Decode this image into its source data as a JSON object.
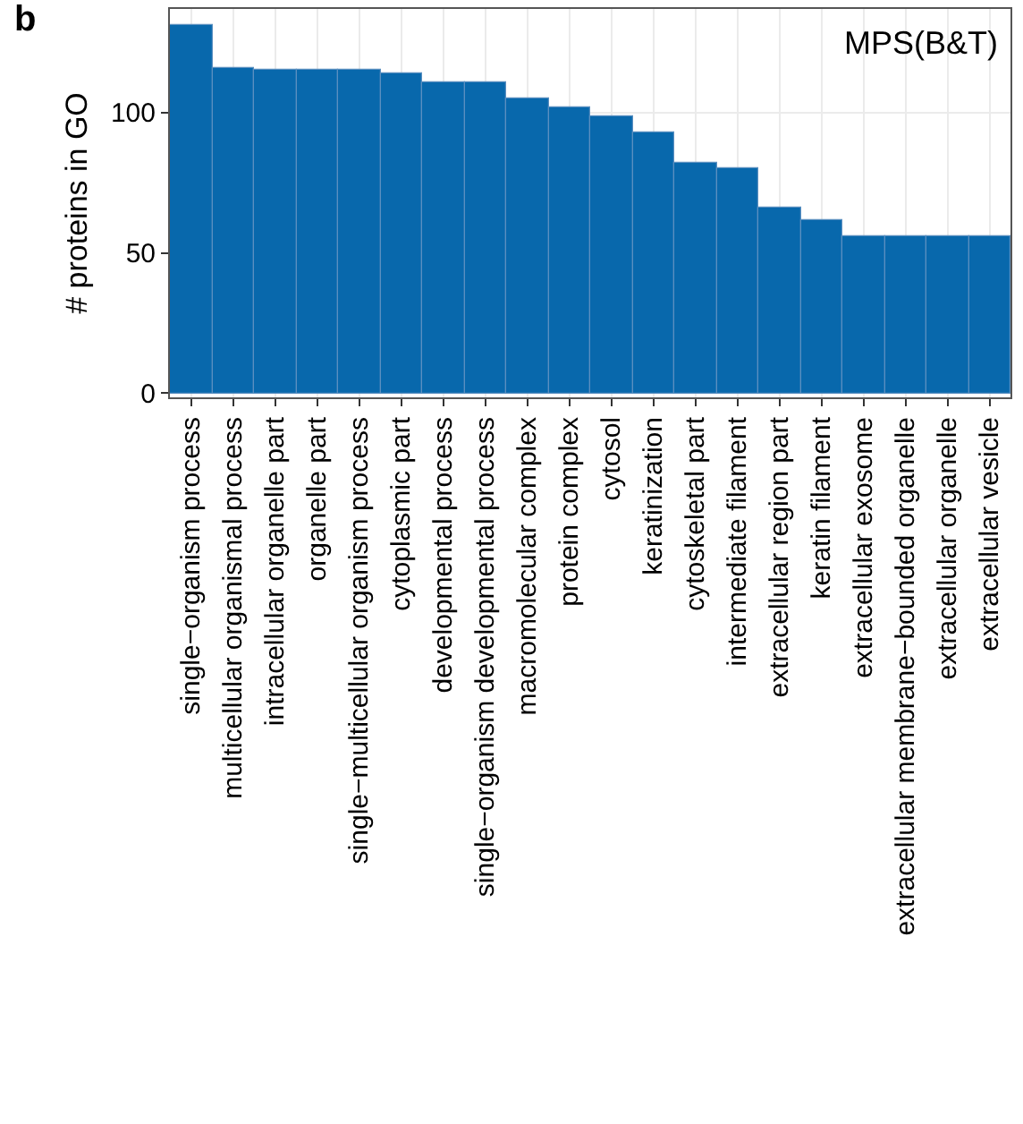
{
  "chart_data": {
    "type": "bar",
    "ylabel": "# proteins in GO",
    "annotations": [
      "b",
      "MPS(B&T)"
    ],
    "categories": [
      "single−organism process",
      "multicellular organismal process",
      "intracellular organelle part",
      "organelle part",
      "single−multicellular organism process",
      "cytoplasmic part",
      "developmental process",
      "single−organism developmental process",
      "macromolecular complex",
      "protein complex",
      "cytosol",
      "keratinization",
      "cytoskeletal part",
      "intermediate filament",
      "extracellular region part",
      "keratin filament",
      "extracellular exosome",
      "extracellular membrane−bounded organelle",
      "extracellular organelle",
      "extracellular vesicle"
    ],
    "values": [
      131,
      116,
      115,
      115,
      115,
      114,
      111,
      111,
      105,
      102,
      99,
      93,
      82,
      80,
      66,
      62,
      56,
      56,
      56,
      56
    ],
    "color": "#0868ac",
    "ylim": [
      -1.5,
      137
    ],
    "yticks": [
      0,
      50,
      100
    ],
    "grid": true
  }
}
